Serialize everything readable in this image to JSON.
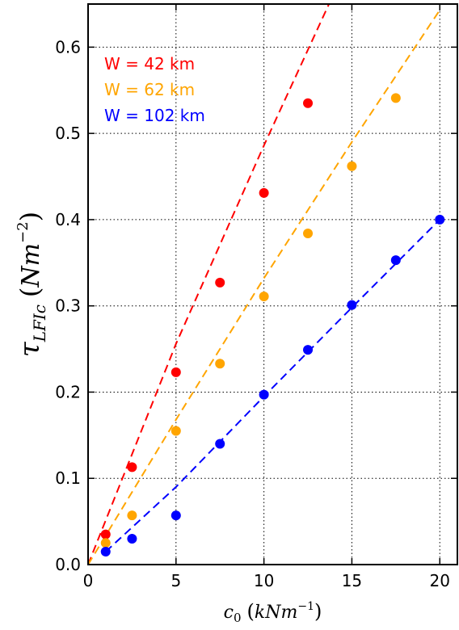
{
  "chart_data": {
    "type": "scatter",
    "title": "",
    "xlabel": "c₀ (kNm⁻¹)",
    "ylabel": "τLFIc (Nm⁻²)",
    "xlabel_parts": {
      "sym": "c",
      "sub": "0",
      "unit_open": "(",
      "unit": "kNm",
      "sup": "−1",
      "unit_close": ")"
    },
    "ylabel_parts": {
      "sym": "τ",
      "sub": "LFIc",
      "unit_open": "(",
      "unit": "Nm",
      "sup": "−2",
      "unit_close": ")"
    },
    "xlim": [
      0,
      21
    ],
    "ylim": [
      0,
      0.65
    ],
    "xticks": [
      0,
      5,
      10,
      15,
      20
    ],
    "yticks": [
      0.0,
      0.1,
      0.2,
      0.3,
      0.4,
      0.5,
      0.6
    ],
    "xtick_labels": [
      "0",
      "5",
      "10",
      "15",
      "20"
    ],
    "ytick_labels": [
      "0.0",
      "0.1",
      "0.2",
      "0.3",
      "0.4",
      "0.5",
      "0.6"
    ],
    "grid": true,
    "legend_position": "top-left",
    "series": [
      {
        "name": "W = 42 km",
        "color": "#ff0000",
        "points": [
          [
            1,
            0.035
          ],
          [
            2.5,
            0.113
          ],
          [
            5,
            0.223
          ],
          [
            7.5,
            0.327
          ],
          [
            10,
            0.431
          ],
          [
            12.5,
            0.535
          ]
        ],
        "fit": [
          [
            0,
            0
          ],
          [
            5,
            0.256
          ],
          [
            10,
            0.486
          ],
          [
            13.7,
            0.65
          ]
        ]
      },
      {
        "name": "W = 62 km",
        "color": "#ffa500",
        "points": [
          [
            1,
            0.025
          ],
          [
            2.5,
            0.057
          ],
          [
            5,
            0.155
          ],
          [
            7.5,
            0.233
          ],
          [
            10,
            0.311
          ],
          [
            12.5,
            0.384
          ],
          [
            15,
            0.462
          ],
          [
            17.5,
            0.541
          ]
        ],
        "fit": [
          [
            0,
            0
          ],
          [
            5,
            0.168
          ],
          [
            10,
            0.332
          ],
          [
            15,
            0.49
          ],
          [
            20,
            0.643
          ]
        ]
      },
      {
        "name": "W = 102 km",
        "color": "#0000ff",
        "points": [
          [
            1,
            0.015
          ],
          [
            2.5,
            0.03
          ],
          [
            5,
            0.057
          ],
          [
            7.5,
            0.14
          ],
          [
            10,
            0.197
          ],
          [
            12.5,
            0.249
          ],
          [
            15,
            0.301
          ],
          [
            17.5,
            0.353
          ],
          [
            20,
            0.4
          ]
        ],
        "fit": [
          [
            1,
            0.015
          ],
          [
            5,
            0.09
          ],
          [
            10,
            0.195
          ],
          [
            15,
            0.298
          ],
          [
            20,
            0.4
          ]
        ]
      }
    ]
  }
}
